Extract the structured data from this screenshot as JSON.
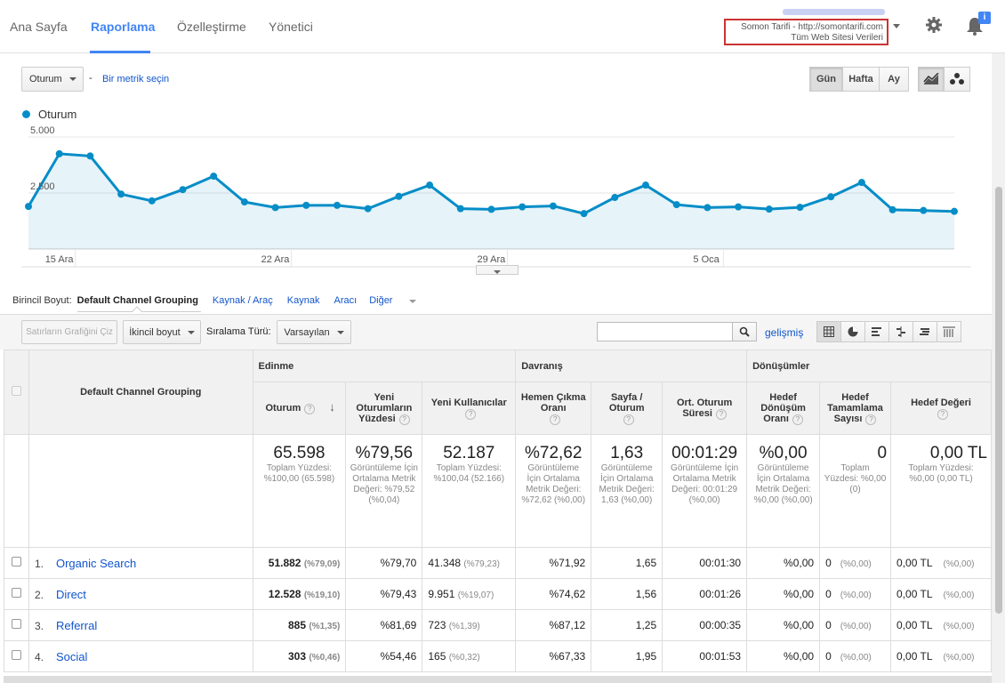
{
  "nav": {
    "tabs": [
      "Ana Sayfa",
      "Raporlama",
      "Özelleştirme",
      "Yönetici"
    ]
  },
  "account": {
    "line1": "Somon Tarifi - http://somontarifi.com",
    "line2": "Tüm Web Sitesi Verileri",
    "badge": "i"
  },
  "controls": {
    "metric": "Oturum",
    "dash": "-",
    "pick_metric": "Bir metrik seçin",
    "periods": [
      "Gün",
      "Hafta",
      "Ay"
    ],
    "legend": "Oturum"
  },
  "chart_data": {
    "type": "area",
    "series": [
      {
        "name": "Oturum",
        "color": "#058dc7",
        "values": [
          1900,
          4250,
          4150,
          2450,
          2150,
          2650,
          3250,
          2100,
          1850,
          1950,
          1950,
          1800,
          2350,
          2850,
          1800,
          1770,
          1880,
          1920,
          1580,
          2300,
          2850,
          1980,
          1850,
          1880,
          1780,
          1860,
          2330,
          2970,
          1750,
          1720,
          1680
        ]
      }
    ],
    "yticks": [
      "2.500",
      "5.000"
    ],
    "ylim": [
      0,
      5000
    ],
    "xticks": [
      {
        "label": "15 Ara",
        "index": 1
      },
      {
        "label": "22 Ara",
        "index": 8
      },
      {
        "label": "29 Ara",
        "index": 15
      },
      {
        "label": "5 Oca",
        "index": 22
      }
    ],
    "grid": true
  },
  "dimensions": {
    "label": "Birincil Boyut:",
    "active": "Default Channel Grouping",
    "items": [
      "Kaynak / Araç",
      "Kaynak",
      "Aracı",
      "Diğer"
    ]
  },
  "toolbar": {
    "plot_rows": "Satırların Grafiğini Çiz",
    "secondary": "İkincil boyut",
    "sort_label": "Sıralama Türü:",
    "sort_value": "Varsayılan",
    "advanced": "gelişmiş"
  },
  "table": {
    "dim_header": "Default Channel Grouping",
    "groups": [
      "Edinme",
      "Davranış",
      "Dönüşümler"
    ],
    "columns": [
      "Oturum",
      "Yeni Oturumların Yüzdesi",
      "Yeni Kullanıcılar",
      "Hemen Çıkma Oranı",
      "Sayfa / Oturum",
      "Ort. Oturum Süresi",
      "Hedef Dönüşüm Oranı",
      "Hedef Tamamlama Sayısı",
      "Hedef Değeri"
    ],
    "totals": [
      {
        "value": "65.598",
        "sub": "Toplam Yüzdesi: %100,00 (65.598)"
      },
      {
        "value": "%79,56",
        "sub": "Görüntüleme İçin Ortalama Metrik Değeri: %79,52 (%0,04)"
      },
      {
        "value": "52.187",
        "sub": "Toplam Yüzdesi: %100,04 (52.166)"
      },
      {
        "value": "%72,62",
        "sub": "Görüntüleme İçin Ortalama Metrik Değeri: %72,62 (%0,00)"
      },
      {
        "value": "1,63",
        "sub": "Görüntüleme İçin Ortalama Metrik Değeri: 1,63 (%0,00)"
      },
      {
        "value": "00:01:29",
        "sub": "Görüntüleme İçin Ortalama Metrik Değeri: 00:01:29 (%0,00)"
      },
      {
        "value": "%0,00",
        "sub": "Görüntüleme İçin Ortalama Metrik Değeri: %0,00 (%0,00)"
      },
      {
        "value": "0",
        "sub": "Toplam Yüzdesi: %0,00 (0)"
      },
      {
        "value": "0,00 TL",
        "sub": "Toplam Yüzdesi: %0,00 (0,00 TL)"
      }
    ],
    "rows": [
      {
        "num": "1.",
        "name": "Organic Search",
        "sessions": "51.882",
        "sessions_pct": "(%79,09)",
        "new_pct": "%79,70",
        "new_users": "41.348",
        "new_users_pct": "(%79,23)",
        "bounce": "%71,92",
        "pages": "1,65",
        "duration": "00:01:30",
        "conv": "%0,00",
        "goals": "0",
        "goals_pct": "(%0,00)",
        "value": "0,00 TL",
        "value_pct": "(%0,00)"
      },
      {
        "num": "2.",
        "name": "Direct",
        "sessions": "12.528",
        "sessions_pct": "(%19,10)",
        "new_pct": "%79,43",
        "new_users": "9.951",
        "new_users_pct": "(%19,07)",
        "bounce": "%74,62",
        "pages": "1,56",
        "duration": "00:01:26",
        "conv": "%0,00",
        "goals": "0",
        "goals_pct": "(%0,00)",
        "value": "0,00 TL",
        "value_pct": "(%0,00)"
      },
      {
        "num": "3.",
        "name": "Referral",
        "sessions": "885",
        "sessions_pct": "(%1,35)",
        "new_pct": "%81,69",
        "new_users": "723",
        "new_users_pct": "(%1,39)",
        "bounce": "%87,12",
        "pages": "1,25",
        "duration": "00:00:35",
        "conv": "%0,00",
        "goals": "0",
        "goals_pct": "(%0,00)",
        "value": "0,00 TL",
        "value_pct": "(%0,00)"
      },
      {
        "num": "4.",
        "name": "Social",
        "sessions": "303",
        "sessions_pct": "(%0,46)",
        "new_pct": "%54,46",
        "new_users": "165",
        "new_users_pct": "(%0,32)",
        "bounce": "%67,33",
        "pages": "1,95",
        "duration": "00:01:53",
        "conv": "%0,00",
        "goals": "0",
        "goals_pct": "(%0,00)",
        "value": "0,00 TL",
        "value_pct": "(%0,00)"
      }
    ]
  }
}
